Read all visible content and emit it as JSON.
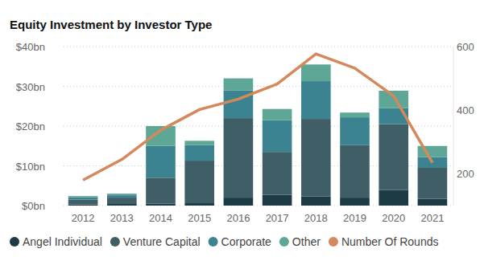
{
  "chart_data": {
    "type": "bar",
    "title": "Equity Investment by Investor Type",
    "stacked": true,
    "grid": true,
    "legend": "bottom",
    "categories": [
      "2012",
      "2013",
      "2014",
      "2015",
      "2016",
      "2017",
      "2018",
      "2019",
      "2020",
      "2021"
    ],
    "ylim": [
      0,
      40
    ],
    "yticks": [
      {
        "value": 0,
        "label": "$0bn"
      },
      {
        "value": 10,
        "label": "$10bn"
      },
      {
        "value": 20,
        "label": "$20bn"
      },
      {
        "value": 30,
        "label": "$30bn"
      },
      {
        "value": 40,
        "label": "$40bn"
      }
    ],
    "y2lim": [
      100,
      600
    ],
    "y2ticks": [
      200,
      400,
      600
    ],
    "series": [
      {
        "name": "Angel Individual",
        "type": "bar",
        "color": "#1c3b45",
        "values": [
          0.3,
          0.4,
          0.5,
          0.6,
          2,
          2.7,
          2.3,
          2,
          3.9,
          1.7
        ]
      },
      {
        "name": "Venture Capital",
        "type": "bar",
        "color": "#3f5e65",
        "values": [
          1.2,
          1.6,
          6.5,
          10.7,
          20,
          10.8,
          19.5,
          13.2,
          16.6,
          7.8
        ]
      },
      {
        "name": "Corporate",
        "type": "bar",
        "color": "#3b8391",
        "values": [
          0.6,
          0.6,
          8,
          3.9,
          7,
          8,
          9.5,
          7,
          4,
          2.7
        ]
      },
      {
        "name": "Other",
        "type": "bar",
        "color": "#5ea796",
        "values": [
          0.3,
          0.4,
          5,
          1.1,
          3,
          2.8,
          4.2,
          1.2,
          4.4,
          2.8
        ]
      },
      {
        "name": "Number Of Rounds",
        "type": "line",
        "axis": "y2",
        "color": "#d4895c",
        "values": [
          180,
          245,
          337,
          402,
          435,
          482,
          577,
          532,
          445,
          235
        ]
      }
    ]
  }
}
